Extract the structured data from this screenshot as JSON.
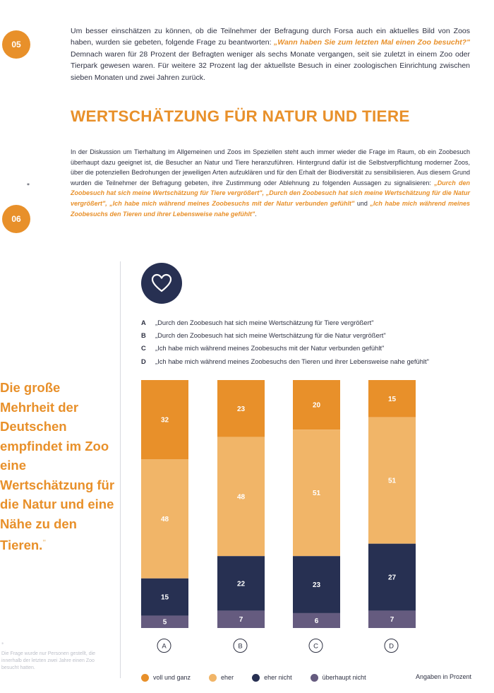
{
  "badges": {
    "first": "05",
    "second": "06",
    "second_mark": "*"
  },
  "intro": {
    "part1": "Um besser einschätzen zu können, ob die Teilnehmer der Befragung durch Forsa auch ein aktuelles Bild von Zoos haben, wurden sie gebeten, folgende Frage zu beantworten: ",
    "question": "„Wann haben Sie zum letzten Mal einen Zoo besucht?\"",
    "part2": " Demnach waren für 28 Prozent der Befragten weniger als sechs Monate vergangen, seit sie zuletzt in einem Zoo oder Tierpark gewesen waren. Für weitere 32 Prozent lag der aktuellste Besuch in einer zoologischen Einrichtung zwischen sieben Monaten und zwei Jahren zurück."
  },
  "heading": "WERTSCHÄTZUNG FÜR NATUR UND TIERE",
  "body": {
    "text": "In der Diskussion um Tierhaltung im Allgemeinen und Zoos im Speziellen steht auch immer wieder die Frage im Raum, ob ein Zoobesuch überhaupt dazu geeignet ist, die Besucher an Natur und Tiere heranzuführen. Hintergrund dafür ist die Selbstverpflichtung moderner Zoos, über die potenziellen Bedrohungen der jeweiligen Arten aufzuklären und für den Erhalt der Biodiversität zu sensibilisieren. Aus diesem Grund wurden die Teilnehmer der Befragung gebeten, ihre Zustimmung oder Ablehnung zu folgenden Aussagen zu signalisieren: ",
    "quotes": "„Durch den Zoobesuch hat sich meine Wertschätzung für Tiere vergrößert\", „Durch den Zoobesuch hat sich meine Wertschätzung für die Natur vergrößert\", „Ich habe mich während meines Zoobesuchs mit der Natur verbunden gefühlt\"",
    "conj": " und ",
    "last_quote": "„Ich habe mich während meines Zoobesuchs den Tieren und ihrer Lebensweise nahe gefühlt\"",
    "end": "."
  },
  "quote": {
    "text": "Die große Mehrheit der Deutschen empfindet im Zoo eine Wertschätzung für die Natur und eine Nähe zu den Tieren.",
    "mark": "\""
  },
  "footnote": {
    "star": "*",
    "text": "Die Frage wurde nur Personen gestellt, die innerhalb der letzten zwei Jahre einen Zoo besucht hatten."
  },
  "statements": [
    {
      "letter": "A",
      "text": "„Durch den Zoobesuch hat sich meine Wertschätzung für Tiere vergrößert\""
    },
    {
      "letter": "B",
      "text": "„Durch den Zoobesuch hat sich meine Wertschätzung für die Natur vergrößert\""
    },
    {
      "letter": "C",
      "text": "„Ich habe mich während meines Zoobesuchs mit der Natur verbunden gefühlt\""
    },
    {
      "letter": "D",
      "text": "„Ich habe mich während meines Zoobesuchs den Tieren und ihrer Lebensweise nahe gefühlt\""
    }
  ],
  "unit_note": "Angaben in Prozent",
  "icon": "heart-icon",
  "colors": {
    "orange": "#e8902a",
    "light_orange": "#f1b568",
    "navy": "#273052",
    "purple": "#655b7f",
    "badge_bg": "#e8902a"
  },
  "chart_data": {
    "type": "bar",
    "stacked": true,
    "orientation": "vertical",
    "categories": [
      "A",
      "B",
      "C",
      "D"
    ],
    "series": [
      {
        "name": "voll und ganz",
        "color": "#e8902a",
        "values": [
          32,
          23,
          20,
          15
        ]
      },
      {
        "name": "eher",
        "color": "#f1b568",
        "values": [
          48,
          48,
          51,
          51
        ]
      },
      {
        "name": "eher nicht",
        "color": "#273052",
        "values": [
          15,
          22,
          23,
          27
        ]
      },
      {
        "name": "überhaupt nicht",
        "color": "#655b7f",
        "values": [
          5,
          7,
          6,
          7
        ]
      }
    ],
    "unit": "Angaben in Prozent",
    "legend_position": "bottom",
    "grid": false
  }
}
